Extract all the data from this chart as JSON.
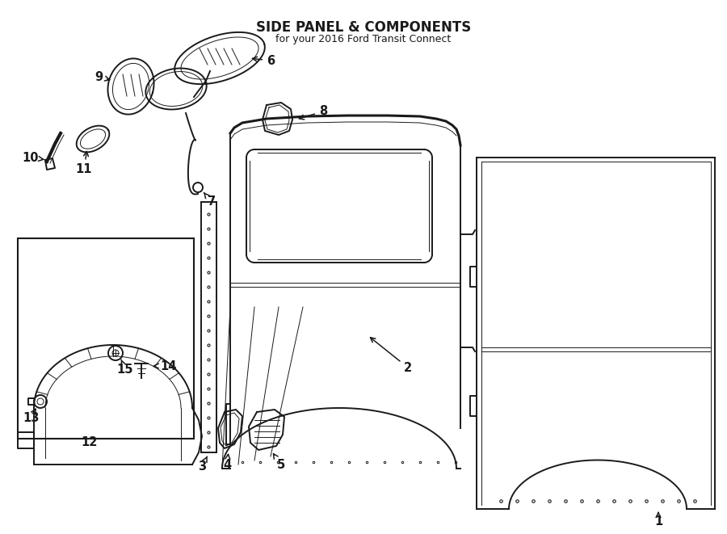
{
  "title": "SIDE PANEL & COMPONENTS",
  "subtitle": "for your 2016 Ford Transit Connect",
  "bg_color": "#ffffff",
  "line_color": "#1a1a1a",
  "lw_main": 1.4,
  "lw_thin": 0.7,
  "lw_thick": 2.2,
  "label_fontsize": 10.5,
  "figw": 9.0,
  "figh": 6.61,
  "dpi": 100
}
